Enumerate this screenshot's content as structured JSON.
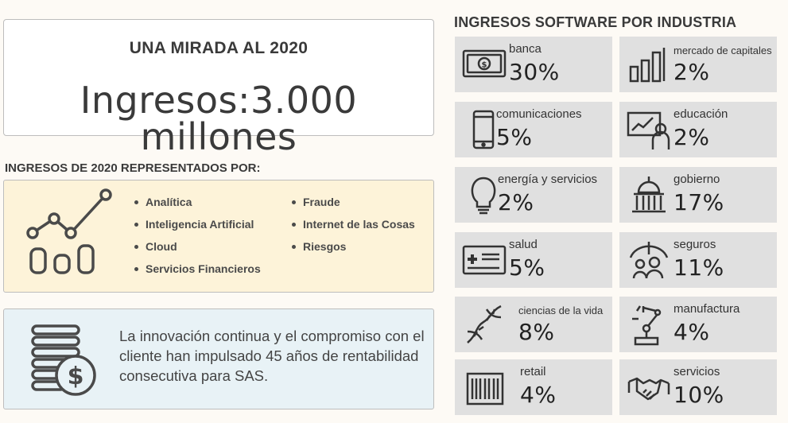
{
  "summary": {
    "title": "UNA MIRADA AL 2020",
    "revenue": "Ingresos:3.000 millones"
  },
  "represented": {
    "heading": "INGRESOS DE 2020 REPRESENTADOS POR:",
    "icon": "analytics-chart-icon",
    "column1": [
      "Analítica",
      "Inteligencia Artificial",
      "Cloud",
      "Servicios Financieros"
    ],
    "column2": [
      "Fraude",
      "Internet de las Cosas",
      "Riesgos"
    ]
  },
  "info": {
    "icon": "coins-dollar-icon",
    "text": "La innovación continua y el compromiso con el cliente han impulsado 45 años de rentabilidad consecutiva para SAS."
  },
  "industries": {
    "heading": "INGRESOS SOFTWARE POR INDUSTRIA",
    "tiles": [
      {
        "label": "banca",
        "value": "30%",
        "icon": "banknote-icon"
      },
      {
        "label": "mercado de capitales",
        "value": "2%",
        "icon": "bar-chart-icon"
      },
      {
        "label": "comunicaciones",
        "value": "5%",
        "icon": "mobile-phone-icon"
      },
      {
        "label": "educación",
        "value": "2%",
        "icon": "teacher-board-icon"
      },
      {
        "label": "energía y servicios",
        "value": "2%",
        "icon": "lightbulb-icon"
      },
      {
        "label": "gobierno",
        "value": "17%",
        "icon": "capitol-building-icon"
      },
      {
        "label": "salud",
        "value": "5%",
        "icon": "health-card-icon"
      },
      {
        "label": "seguros",
        "value": "11%",
        "icon": "umbrella-family-icon"
      },
      {
        "label": "ciencias de la vida",
        "value": "8%",
        "icon": "dna-icon"
      },
      {
        "label": "manufactura",
        "value": "4%",
        "icon": "robot-arm-icon"
      },
      {
        "label": "retail",
        "value": "4%",
        "icon": "barcode-icon"
      },
      {
        "label": "servicios",
        "value": "10%",
        "icon": "handshake-icon"
      }
    ]
  }
}
